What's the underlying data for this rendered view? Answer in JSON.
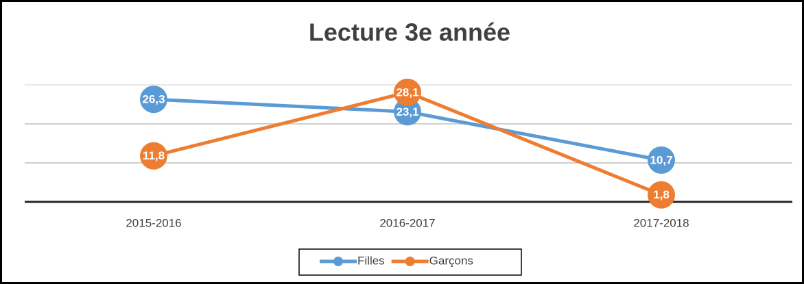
{
  "chart_data": {
    "type": "line",
    "title": "Lecture 3e année",
    "categories": [
      "2015-2016",
      "2016-2017",
      "2017-2018"
    ],
    "series": [
      {
        "name": "Filles",
        "color": "#5b9bd5",
        "values": [
          26.3,
          23.1,
          10.7
        ],
        "value_labels": [
          "26,3",
          "23,1",
          "10,7"
        ]
      },
      {
        "name": "Garçons",
        "color": "#ed7d31",
        "values": [
          11.8,
          28.1,
          1.8
        ],
        "value_labels": [
          "11,8",
          "28,1",
          "1,8"
        ]
      }
    ],
    "ylim": [
      0,
      30
    ],
    "yticks": [
      0,
      10,
      20,
      30
    ],
    "grid": true,
    "legend": "bottom"
  }
}
